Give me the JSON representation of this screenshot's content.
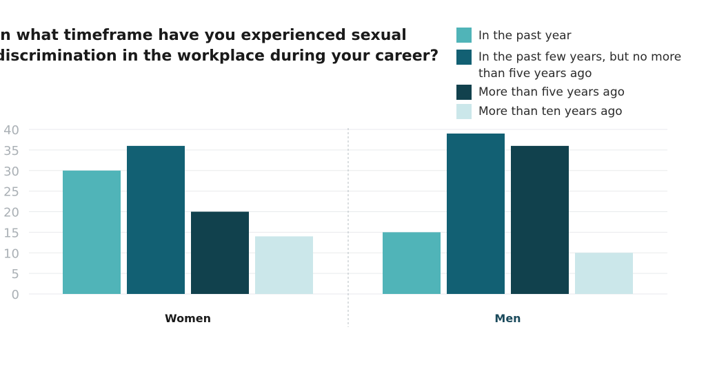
{
  "chart_data": {
    "type": "bar",
    "title_lines": [
      "In what timeframe have you experienced sexual",
      "discrimination in the workplace during your career?"
    ],
    "categories": [
      "Women",
      "Men"
    ],
    "series": [
      {
        "name": "In the past year",
        "color": "#50b4b8",
        "values": [
          30,
          15
        ]
      },
      {
        "name": "In the past few years, but no more than five years ago",
        "legend_lines": [
          "In the past few years, but no more",
          "than five years ago"
        ],
        "color": "#126073",
        "values": [
          36,
          39
        ]
      },
      {
        "name": "More than five years ago",
        "color": "#11414d",
        "values": [
          20,
          36
        ]
      },
      {
        "name": "More than ten years ago",
        "color": "#cbe7ea",
        "values": [
          14,
          10
        ]
      }
    ],
    "ylim": [
      0,
      40
    ],
    "yticks": [
      0,
      5,
      10,
      15,
      20,
      25,
      30,
      35,
      40
    ],
    "grid": true,
    "legend_position": "top-right",
    "category_label_colors": [
      "#1a1a1a",
      "#1b4a5c"
    ],
    "gridline_color": "#e8eaec",
    "divider_color": "#b5bcc2"
  }
}
